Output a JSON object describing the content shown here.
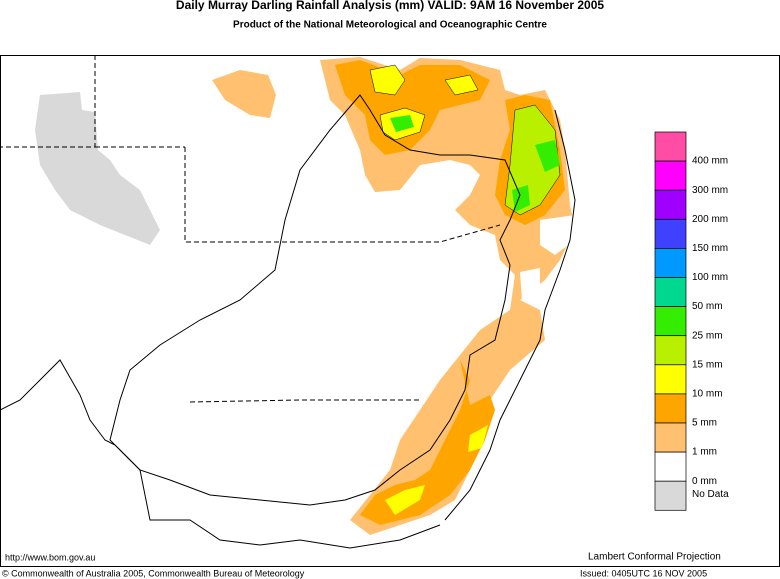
{
  "header": {
    "title": "Daily Murray Darling Rainfall Analysis (mm)  VALID: 9AM 16 November 2005",
    "subtitle": "Product of the National Meteorological and Oceanographic Centre"
  },
  "legend": {
    "colors": [
      "#ff4da6",
      "#ff00ff",
      "#a000ff",
      "#4040ff",
      "#0099ff",
      "#00d890",
      "#33ee00",
      "#b8f000",
      "#ffff00",
      "#ffa500",
      "#ffc070",
      "#ffffff",
      "#d9d9d9"
    ],
    "labels": [
      "400 mm",
      "300 mm",
      "200 mm",
      "150 mm",
      "100 mm",
      "50 mm",
      "25 mm",
      "15 mm",
      "10 mm",
      "5 mm",
      "1 mm",
      "0 mm",
      "No Data"
    ]
  },
  "footer": {
    "url": "http://www.bom.gov.au",
    "projection": "Lambert Conformal Projection",
    "copyright": "© Commonwealth of Australia 2005, Commonwealth Bureau of Meteorology",
    "issued": "Issued: 0405UTC 16 NOV 2005"
  }
}
